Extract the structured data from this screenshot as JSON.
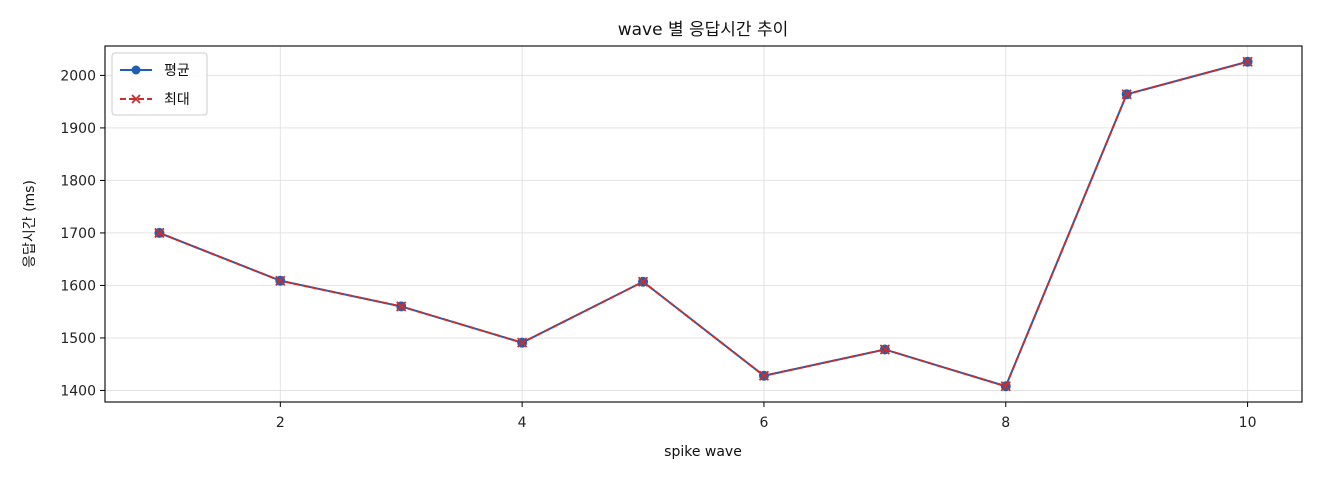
{
  "chart_data": {
    "type": "line",
    "title": "wave 별 응답시간 추이",
    "xlabel": "spike wave",
    "ylabel": "응답시간 (ms)",
    "x": [
      1,
      2,
      3,
      4,
      5,
      6,
      7,
      8,
      9,
      10
    ],
    "xlim": [
      0.55,
      10.45
    ],
    "ylim": [
      1378,
      2056
    ],
    "xticks": [
      2,
      4,
      6,
      8,
      10
    ],
    "yticks": [
      1400,
      1500,
      1600,
      1700,
      1800,
      1900,
      2000
    ],
    "grid": true,
    "legend_position": "top-left",
    "series": [
      {
        "name": "평균",
        "values": [
          1700,
          1609,
          1560,
          1491,
          1607,
          1428,
          1478,
          1408,
          1964,
          2026
        ],
        "color": "#1f5fb4",
        "line_style": "solid",
        "marker": "circle"
      },
      {
        "name": "최대",
        "values": [
          1700,
          1609,
          1560,
          1491,
          1607,
          1428,
          1478,
          1408,
          1964,
          2026
        ],
        "color": "#c8302f",
        "line_style": "dashed",
        "marker": "x"
      }
    ]
  }
}
